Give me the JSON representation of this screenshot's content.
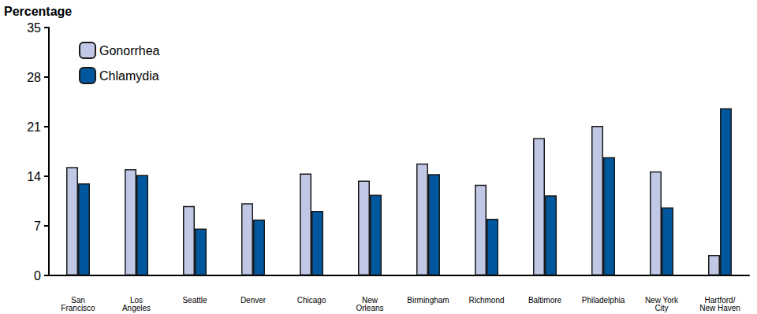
{
  "chart_data": {
    "type": "bar",
    "y_label": "Percentage",
    "categories": [
      "San\nFrancisco",
      "Los\nAngeles",
      "Seattle",
      "Denver",
      "Chicago",
      "New\nOrleans",
      "Birmingham",
      "Richmond",
      "Baltimore",
      "Philadelphia",
      "New York\nCity",
      "Hartford/\nNew Haven"
    ],
    "series": [
      {
        "name": "Gonorrhea",
        "color": "#c0c8e6",
        "values": [
          15.3,
          15.0,
          9.8,
          10.2,
          14.4,
          13.4,
          15.8,
          12.8,
          19.4,
          21.1,
          14.7,
          2.9
        ]
      },
      {
        "name": "Chlamydia",
        "color": "#00579e",
        "values": [
          13.0,
          14.2,
          6.6,
          7.9,
          9.1,
          11.4,
          14.3,
          8.0,
          11.3,
          16.7,
          9.6,
          23.6
        ]
      }
    ],
    "ylim": [
      0,
      35
    ],
    "yticks": [
      0,
      7,
      14,
      21,
      28,
      35
    ],
    "grid": false,
    "legend": "upper left"
  }
}
